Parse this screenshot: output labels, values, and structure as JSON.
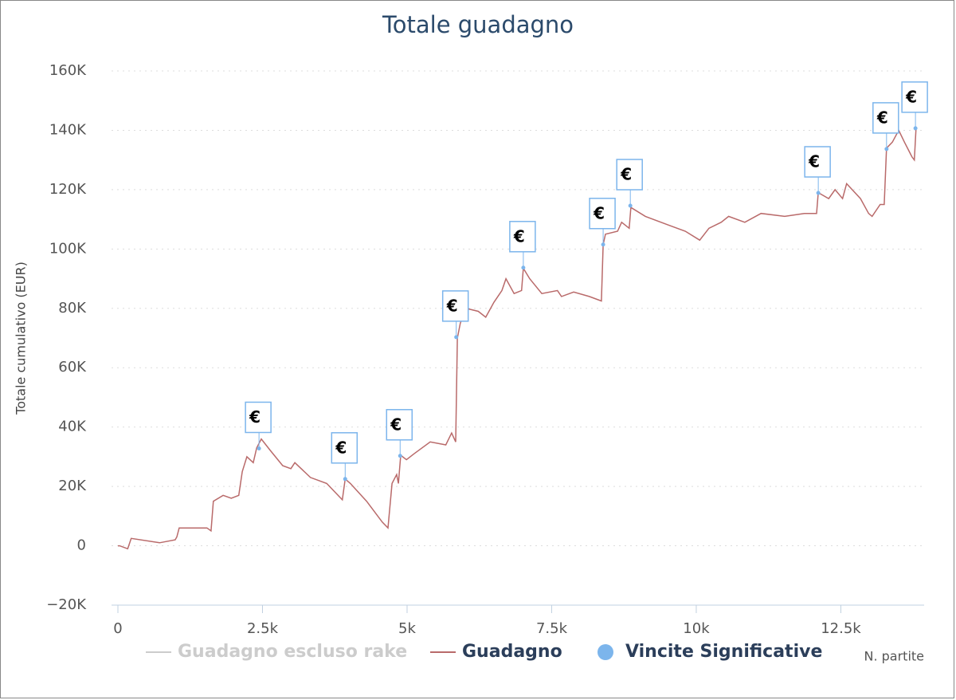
{
  "chart_data": {
    "type": "line",
    "title": "Totale guadagno",
    "y_label": "Totale cumulativo (EUR)",
    "x_label": "N. partite",
    "xlim": [
      -110,
      13940
    ],
    "ylim": [
      -20000,
      160000
    ],
    "xticks": [
      0,
      {
        "value": 2500,
        "label": "2.5k"
      },
      {
        "value": 5000,
        "label": "5k"
      },
      {
        "value": 7500,
        "label": "7.5k"
      },
      {
        "value": 10000,
        "label": "10k"
      },
      {
        "value": 12500,
        "label": "12.5k"
      }
    ],
    "yticks": [
      {
        "value": -20000,
        "label": "−20K"
      },
      0,
      {
        "value": 20000,
        "label": "20K"
      },
      {
        "value": 40000,
        "label": "40K"
      },
      {
        "value": 60000,
        "label": "60K"
      },
      {
        "value": 80000,
        "label": "80K"
      },
      {
        "value": 100000,
        "label": "100K"
      },
      {
        "value": 120000,
        "label": "120K"
      },
      {
        "value": 140000,
        "label": "140K"
      },
      {
        "value": 160000,
        "label": "160K"
      }
    ],
    "grid": true,
    "series": [
      {
        "name": "Guadagno escluso rake",
        "color": "#cccccc",
        "visible": false
      },
      {
        "name": "Guadagno",
        "color": "#b96a6a",
        "type": "line",
        "x": [
          0,
          30,
          170,
          230,
          720,
          990,
          1020,
          1060,
          1540,
          1610,
          1650,
          1820,
          1960,
          2090,
          2150,
          2230,
          2340,
          2400,
          2480,
          2640,
          2850,
          2990,
          3060,
          3330,
          3610,
          3880,
          3930,
          4020,
          4300,
          4570,
          4670,
          4740,
          4820,
          4850,
          4890,
          4990,
          5120,
          5400,
          5670,
          5770,
          5840,
          5870,
          5920,
          6020,
          6230,
          6360,
          6500,
          6640,
          6710,
          6850,
          6980,
          7010,
          7120,
          7330,
          7600,
          7670,
          7880,
          8150,
          8360,
          8390,
          8430,
          8640,
          8710,
          8840,
          8870,
          9120,
          9530,
          9810,
          10060,
          10220,
          10430,
          10560,
          10840,
          11120,
          11530,
          11870,
          12080,
          12110,
          12290,
          12400,
          12530,
          12600,
          12840,
          12980,
          13040,
          13180,
          13250,
          13290,
          13390,
          13500,
          13600,
          13730,
          13770,
          13800
        ],
        "values": [
          0,
          0,
          -1000,
          2500,
          1000,
          2000,
          3000,
          6000,
          6000,
          5000,
          15000,
          17000,
          16000,
          17000,
          25000,
          30000,
          28000,
          33000,
          36000,
          32000,
          27000,
          26000,
          28000,
          23000,
          21000,
          15500,
          22500,
          21000,
          15000,
          8000,
          6000,
          21000,
          24000,
          21000,
          30500,
          29000,
          31000,
          35000,
          34000,
          38000,
          35000,
          70000,
          75000,
          80000,
          79000,
          77000,
          82000,
          86000,
          90000,
          85000,
          86000,
          93500,
          90000,
          85000,
          86000,
          84000,
          85500,
          84000,
          82500,
          101500,
          105000,
          106000,
          109000,
          107000,
          114000,
          111000,
          108000,
          106000,
          103000,
          107000,
          109000,
          111000,
          109000,
          112000,
          111000,
          112000,
          112000,
          119000,
          117000,
          120000,
          117000,
          122000,
          117000,
          112000,
          111000,
          115000,
          115000,
          134000,
          136000,
          140000,
          136000,
          131000,
          130000,
          140500
        ]
      },
      {
        "name": "Vincite Significative",
        "color": "#7cb5ec",
        "type": "scatter",
        "x": [
          2440,
          3930,
          4880,
          5850,
          7010,
          8390,
          8860,
          12110,
          13290,
          13790
        ],
        "values": [
          32800,
          22500,
          30300,
          70300,
          93700,
          101500,
          114600,
          118900,
          133700,
          140700
        ],
        "labels": [
          "€",
          "€",
          "€",
          "€",
          "€",
          "€",
          "€",
          "€",
          "€",
          "€"
        ]
      }
    ]
  }
}
